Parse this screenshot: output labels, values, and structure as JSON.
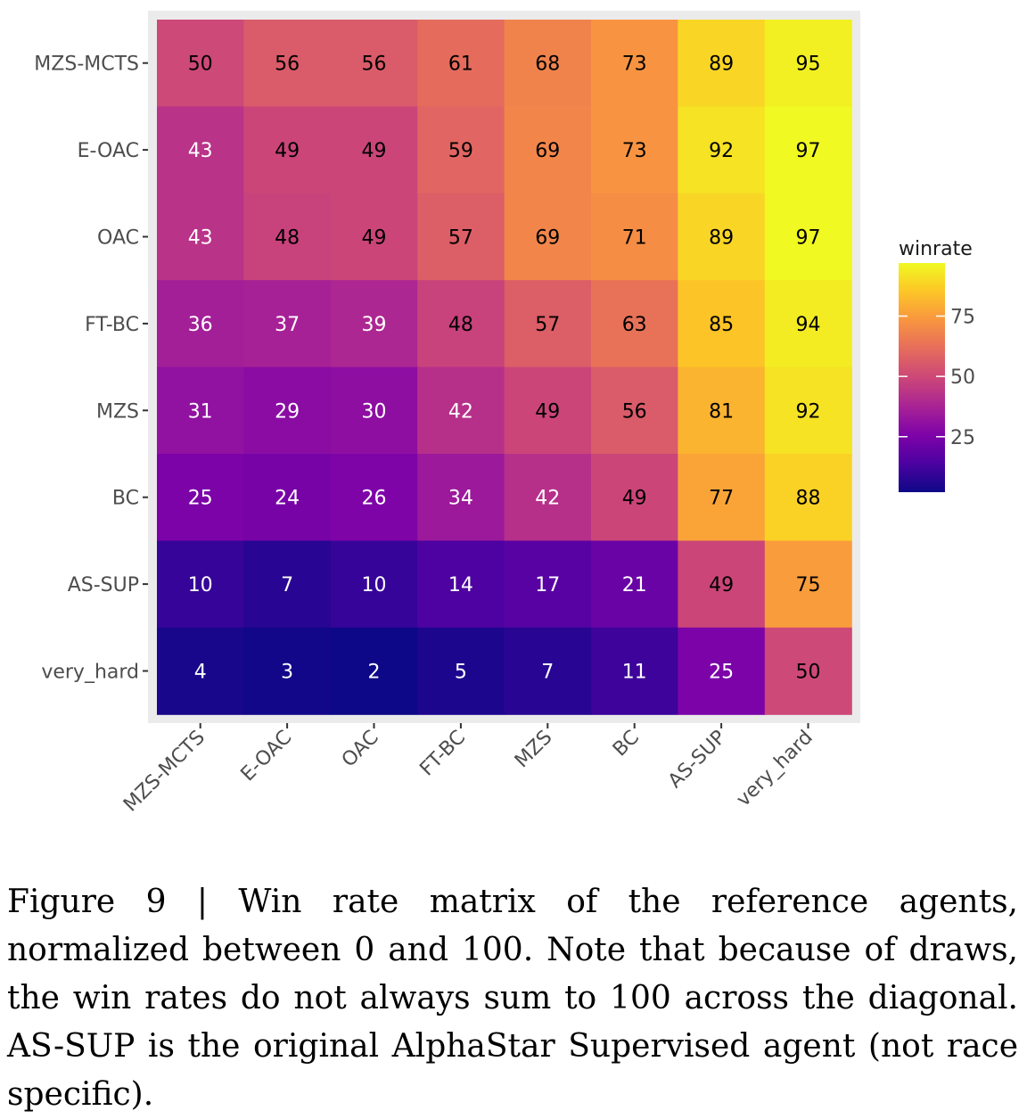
{
  "chart_data": {
    "type": "heatmap",
    "rows": [
      "MZS-MCTS",
      "E-OAC",
      "OAC",
      "FT-BC",
      "MZS",
      "BC",
      "AS-SUP",
      "very_hard"
    ],
    "columns": [
      "MZS-MCTS",
      "E-OAC",
      "OAC",
      "FT-BC",
      "MZS",
      "BC",
      "AS-SUP",
      "very_hard"
    ],
    "values": [
      [
        50,
        56,
        56,
        61,
        68,
        73,
        89,
        95
      ],
      [
        43,
        49,
        49,
        59,
        69,
        73,
        92,
        97
      ],
      [
        43,
        48,
        49,
        57,
        69,
        71,
        89,
        97
      ],
      [
        36,
        37,
        39,
        48,
        57,
        63,
        85,
        94
      ],
      [
        31,
        29,
        30,
        42,
        49,
        56,
        81,
        92
      ],
      [
        25,
        24,
        26,
        34,
        42,
        49,
        77,
        88
      ],
      [
        10,
        7,
        10,
        14,
        17,
        21,
        49,
        75
      ],
      [
        4,
        3,
        2,
        5,
        7,
        11,
        25,
        50
      ]
    ],
    "legend": {
      "title": "winrate",
      "ticks": [
        75,
        50,
        25
      ],
      "range": [
        2,
        97
      ],
      "placement": "right"
    },
    "colormap": "plasma",
    "background": "#ebebeb"
  },
  "caption": "Figure 9 | Win rate matrix of the reference agents, normalized between 0 and 100. Note that because of draws, the win rates do not always sum to 100 across the diagonal. AS-SUP is the original AlphaStar Supervised agent (not race specific)."
}
